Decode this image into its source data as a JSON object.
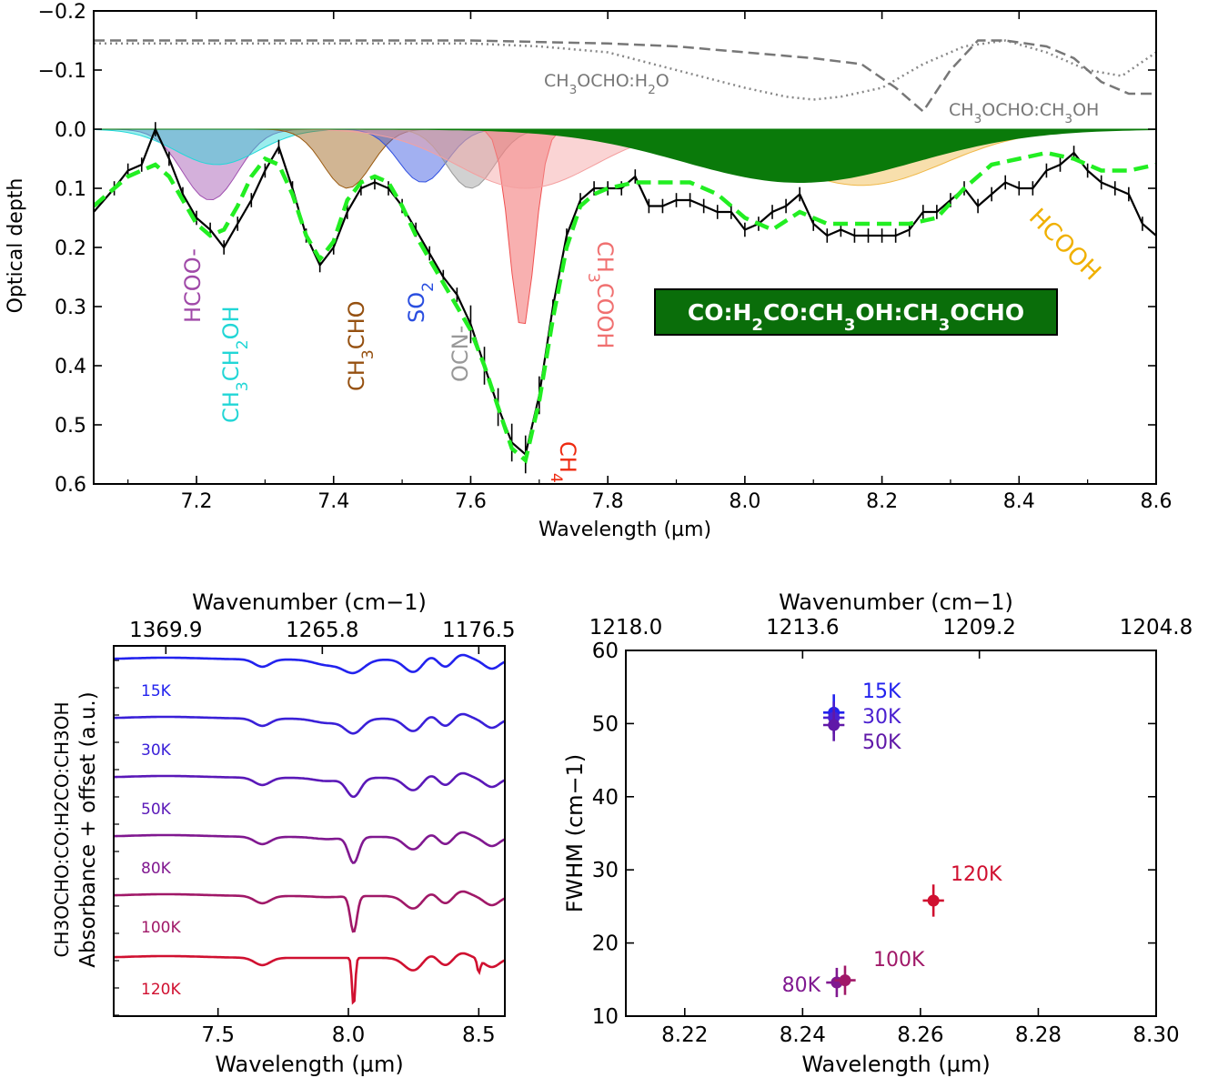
{
  "chart_data": [
    {
      "type": "line",
      "panel": "top",
      "xlabel": "Wavelength (µm)",
      "ylabel": "Optical depth",
      "xlim": [
        7.05,
        8.6
      ],
      "ylim": [
        0.6,
        -0.2
      ],
      "xticks": [
        7.2,
        7.4,
        7.6,
        7.8,
        8.0,
        8.2,
        8.4,
        8.6
      ],
      "xtick_labels": [
        "7.2",
        "7.4",
        "7.6",
        "7.8",
        "8.0",
        "8.2",
        "8.4",
        "8.6"
      ],
      "yticks": [
        -0.2,
        -0.1,
        0.0,
        0.1,
        0.2,
        0.3,
        0.4,
        0.5,
        0.6
      ],
      "ytick_labels": [
        "−0.2",
        "−0.1",
        "0.0",
        "0.1",
        "0.2",
        "0.3",
        "0.4",
        "0.5",
        "0.6"
      ],
      "observed": {
        "name": "observed spectrum",
        "color": "#000000",
        "x": [
          7.05,
          7.08,
          7.1,
          7.12,
          7.14,
          7.16,
          7.18,
          7.2,
          7.22,
          7.24,
          7.26,
          7.28,
          7.3,
          7.32,
          7.34,
          7.36,
          7.38,
          7.4,
          7.42,
          7.44,
          7.46,
          7.48,
          7.5,
          7.52,
          7.54,
          7.56,
          7.58,
          7.6,
          7.62,
          7.64,
          7.66,
          7.68,
          7.7,
          7.72,
          7.74,
          7.76,
          7.78,
          7.8,
          7.82,
          7.84,
          7.86,
          7.88,
          7.9,
          7.92,
          7.94,
          7.96,
          7.98,
          8.0,
          8.02,
          8.04,
          8.06,
          8.08,
          8.1,
          8.12,
          8.14,
          8.16,
          8.18,
          8.2,
          8.22,
          8.24,
          8.26,
          8.28,
          8.3,
          8.32,
          8.34,
          8.36,
          8.38,
          8.4,
          8.42,
          8.44,
          8.46,
          8.48,
          8.5,
          8.52,
          8.54,
          8.56,
          8.58,
          8.6
        ],
        "y": [
          0.14,
          0.1,
          0.07,
          0.06,
          0.0,
          0.05,
          0.11,
          0.15,
          0.17,
          0.2,
          0.16,
          0.12,
          0.07,
          0.03,
          0.1,
          0.18,
          0.23,
          0.2,
          0.14,
          0.1,
          0.09,
          0.1,
          0.13,
          0.17,
          0.21,
          0.25,
          0.28,
          0.33,
          0.4,
          0.47,
          0.53,
          0.55,
          0.45,
          0.3,
          0.18,
          0.12,
          0.1,
          0.1,
          0.1,
          0.08,
          0.13,
          0.13,
          0.12,
          0.12,
          0.13,
          0.14,
          0.14,
          0.17,
          0.16,
          0.14,
          0.13,
          0.11,
          0.16,
          0.18,
          0.17,
          0.18,
          0.18,
          0.18,
          0.18,
          0.17,
          0.14,
          0.14,
          0.12,
          0.1,
          0.13,
          0.11,
          0.09,
          0.1,
          0.1,
          0.07,
          0.06,
          0.04,
          0.07,
          0.09,
          0.1,
          0.11,
          0.16,
          0.18
        ]
      },
      "model": {
        "name": "total fit",
        "color": "#22ee22",
        "x": [
          7.05,
          7.08,
          7.1,
          7.12,
          7.14,
          7.16,
          7.18,
          7.2,
          7.22,
          7.24,
          7.26,
          7.28,
          7.3,
          7.32,
          7.34,
          7.36,
          7.38,
          7.4,
          7.42,
          7.44,
          7.46,
          7.48,
          7.5,
          7.52,
          7.54,
          7.56,
          7.58,
          7.6,
          7.62,
          7.64,
          7.66,
          7.68,
          7.7,
          7.72,
          7.74,
          7.76,
          7.78,
          7.8,
          7.84,
          7.88,
          7.92,
          7.96,
          8.0,
          8.04,
          8.08,
          8.12,
          8.16,
          8.2,
          8.24,
          8.28,
          8.32,
          8.36,
          8.4,
          8.44,
          8.48,
          8.52,
          8.56,
          8.6
        ],
        "y": [
          0.13,
          0.1,
          0.08,
          0.07,
          0.06,
          0.08,
          0.12,
          0.16,
          0.18,
          0.17,
          0.13,
          0.08,
          0.05,
          0.06,
          0.11,
          0.18,
          0.22,
          0.19,
          0.12,
          0.09,
          0.08,
          0.09,
          0.13,
          0.18,
          0.22,
          0.26,
          0.3,
          0.34,
          0.4,
          0.47,
          0.54,
          0.56,
          0.46,
          0.32,
          0.2,
          0.13,
          0.11,
          0.1,
          0.09,
          0.09,
          0.09,
          0.11,
          0.15,
          0.17,
          0.14,
          0.16,
          0.16,
          0.16,
          0.16,
          0.15,
          0.1,
          0.06,
          0.05,
          0.04,
          0.05,
          0.07,
          0.07,
          0.06
        ]
      },
      "reference_curves": [
        {
          "name": "CH3OCHO:H2O",
          "style": "dotted",
          "color": "#888888",
          "x": [
            7.05,
            7.2,
            7.4,
            7.6,
            7.7,
            7.8,
            7.9,
            8.0,
            8.06,
            8.1,
            8.14,
            8.2,
            8.26,
            8.32,
            8.38,
            8.44,
            8.5,
            8.55,
            8.6
          ],
          "y": [
            -0.145,
            -0.145,
            -0.145,
            -0.145,
            -0.14,
            -0.13,
            -0.1,
            -0.07,
            -0.055,
            -0.05,
            -0.055,
            -0.07,
            -0.11,
            -0.14,
            -0.15,
            -0.13,
            -0.1,
            -0.09,
            -0.13
          ]
        },
        {
          "name": "CH3OCHO:CH3OH",
          "style": "dashed",
          "color": "#777777",
          "x": [
            7.05,
            7.3,
            7.6,
            7.8,
            7.9,
            8.0,
            8.1,
            8.17,
            8.22,
            8.26,
            8.3,
            8.34,
            8.38,
            8.44,
            8.48,
            8.52,
            8.56,
            8.6
          ],
          "y": [
            -0.15,
            -0.15,
            -0.15,
            -0.145,
            -0.14,
            -0.13,
            -0.12,
            -0.11,
            -0.07,
            -0.03,
            -0.1,
            -0.15,
            -0.15,
            -0.14,
            -0.12,
            -0.08,
            -0.06,
            -0.06
          ]
        }
      ],
      "components": [
        {
          "name": "HCOO-",
          "color": "#a050b0",
          "center": 7.22,
          "depth": 0.12,
          "width": 0.04
        },
        {
          "name": "CH3CH2OH",
          "color": "#22d8d8",
          "center": 7.23,
          "depth": 0.06,
          "width": 0.06
        },
        {
          "name": "CH3CHO",
          "color": "#9a5a10",
          "center": 7.42,
          "depth": 0.1,
          "width": 0.035
        },
        {
          "name": "SO2",
          "color": "#3050e0",
          "center": 7.53,
          "depth": 0.09,
          "width": 0.035
        },
        {
          "name": "OCN-",
          "color": "#999999",
          "center": 7.6,
          "depth": 0.1,
          "width": 0.035
        },
        {
          "name": "CH4",
          "color": "#f05050",
          "center": 7.675,
          "depth": 0.34,
          "width": 0.018
        },
        {
          "name": "CH3COOH",
          "color": "#f4a0a0",
          "center": 7.68,
          "depth": 0.1,
          "width": 0.1
        },
        {
          "name": "HCOOH",
          "color": "#f0b848",
          "center": 8.17,
          "depth": 0.095,
          "width": 0.12
        },
        {
          "name": "CO:H2CO:CH3OH:CH3OCHO",
          "color": "#0a7a0a",
          "center": 8.08,
          "depth": 0.09,
          "width": 0.17
        }
      ],
      "annotations": [
        {
          "text": "HCOO-",
          "color": "#a04aa8"
        },
        {
          "text": "CH3CH2OH",
          "color": "#22d6d6"
        },
        {
          "text": "CH3CHO",
          "color": "#955010"
        },
        {
          "text": "SO2",
          "color": "#2a4ee0"
        },
        {
          "text": "OCN-",
          "color": "#999999"
        },
        {
          "text": "CH4",
          "color": "#ee2a10"
        },
        {
          "text": "CH3COOH",
          "color": "#f07070"
        },
        {
          "text": "HCOOH",
          "color": "#f0b000"
        },
        {
          "text": "CH3OCHO:H2O",
          "color": "#777777"
        },
        {
          "text": "CH3OCHO:CH3OH",
          "color": "#777777"
        }
      ],
      "legend_box": {
        "text": "CO:H2CO:CH3OH:CH3OCHO",
        "bg": "#0a6e0a",
        "fg": "#ffffff"
      }
    },
    {
      "type": "line",
      "panel": "bottom-left",
      "xlabel": "Wavelength (µm)",
      "ylabel_line1": "CH3OCHO:CO:H2CO:CH3OH",
      "ylabel_line2": "Absorbance + offset (a.u.)",
      "top_xlabel": "Wavenumber (cm−1)",
      "xlim": [
        7.1,
        8.6
      ],
      "xticks": [
        7.5,
        8.0,
        8.5
      ],
      "xtick_labels": [
        "7.5",
        "8.0",
        "8.5"
      ],
      "top_tick_labels": [
        "1369.9",
        "1265.8",
        "1176.5"
      ],
      "top_tick_wavelengths": [
        7.3,
        7.9,
        8.5
      ],
      "series": [
        {
          "name": "15K",
          "color": "#2222ee"
        },
        {
          "name": "30K",
          "color": "#3a20d8"
        },
        {
          "name": "50K",
          "color": "#5a18b8"
        },
        {
          "name": "80K",
          "color": "#801890"
        },
        {
          "name": "100K",
          "color": "#a01868"
        },
        {
          "name": "120K",
          "color": "#d01030"
        }
      ]
    },
    {
      "type": "scatter",
      "panel": "bottom-right",
      "xlabel": "Wavelength (µm)",
      "ylabel": "FWHM (cm−1)",
      "top_xlabel": "Wavenumber (cm−1)",
      "xlim": [
        8.21,
        8.3
      ],
      "ylim": [
        10,
        60
      ],
      "xticks": [
        8.22,
        8.24,
        8.26,
        8.28,
        8.3
      ],
      "xtick_labels": [
        "8.22",
        "8.24",
        "8.26",
        "8.28",
        "8.30"
      ],
      "yticks": [
        10,
        20,
        30,
        40,
        50,
        60
      ],
      "ytick_labels": [
        "10",
        "20",
        "30",
        "40",
        "50",
        "60"
      ],
      "top_tick_labels": [
        "1218.0",
        "1213.6",
        "1209.2",
        "1204.8"
      ],
      "top_tick_wavelengths": [
        8.21,
        8.24,
        8.27,
        8.3
      ],
      "points": [
        {
          "label": "15K",
          "x": 8.2453,
          "y": 51.5,
          "xerr": 0.0018,
          "yerr": 2.5,
          "color": "#2222ee"
        },
        {
          "label": "30K",
          "x": 8.2453,
          "y": 50.8,
          "xerr": 0.0018,
          "yerr": 2.2,
          "color": "#4a20d0"
        },
        {
          "label": "50K",
          "x": 8.2453,
          "y": 49.8,
          "xerr": 0.0018,
          "yerr": 2.2,
          "color": "#6018a8"
        },
        {
          "label": "80K",
          "x": 8.2458,
          "y": 14.6,
          "xerr": 0.0018,
          "yerr": 2.0,
          "color": "#801890"
        },
        {
          "label": "100K",
          "x": 8.2472,
          "y": 14.9,
          "xerr": 0.0018,
          "yerr": 2.0,
          "color": "#a01868"
        },
        {
          "label": "120K",
          "x": 8.2622,
          "y": 25.8,
          "xerr": 0.0018,
          "yerr": 2.2,
          "color": "#d01030"
        }
      ]
    }
  ]
}
